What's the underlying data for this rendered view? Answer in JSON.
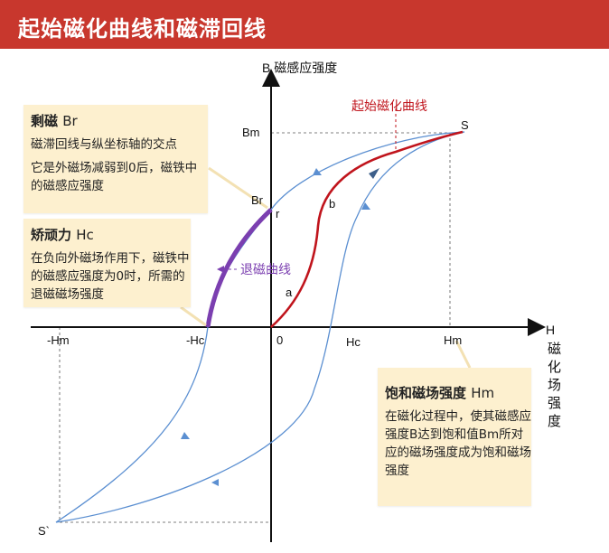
{
  "header": {
    "title": "起始磁化曲线和磁滞回线"
  },
  "axes": {
    "y_label": "B 磁感应强度",
    "x_label_h": "H",
    "x_label_chars": [
      "磁",
      "化",
      "场",
      "强",
      "度"
    ]
  },
  "labels": {
    "initial_curve": "起始磁化曲线",
    "demag_curve": "退磁曲线",
    "S": "S",
    "S_neg": "S`",
    "Bm": "Bm",
    "Br": "Br",
    "r": "r",
    "b": "b",
    "a": "a",
    "origin": "0",
    "neg_Hm": "-Hm",
    "neg_Hc": "-Hc",
    "Hc": "Hc",
    "Hm": "Hm"
  },
  "notes": {
    "remanence": {
      "title": "剩磁",
      "abbr": "Br",
      "lines": [
        "磁滞回线与纵坐标轴的交点",
        "它是外磁场减弱到0后，磁铁中的磁感应强度"
      ]
    },
    "coercivity": {
      "title": "矫顽力",
      "abbr": "Hc",
      "lines": [
        "在负向外磁场作用下，磁铁中的磁感应强度为0时，所需的退磁磁场强度"
      ]
    },
    "saturation": {
      "title": "饱和磁场强度",
      "abbr": "Hm",
      "lines": [
        "在磁化过程中，使其磁感应强度B达到饱和值Bm所对应的磁场强度成为饱和磁场强度"
      ]
    }
  },
  "colors": {
    "header_bg": "#c8372d",
    "loop": "#5b8fd1",
    "initial_curve": "#c0141c",
    "demag_curve": "#7b3fb0",
    "note_bg": "#fdf0cf"
  }
}
